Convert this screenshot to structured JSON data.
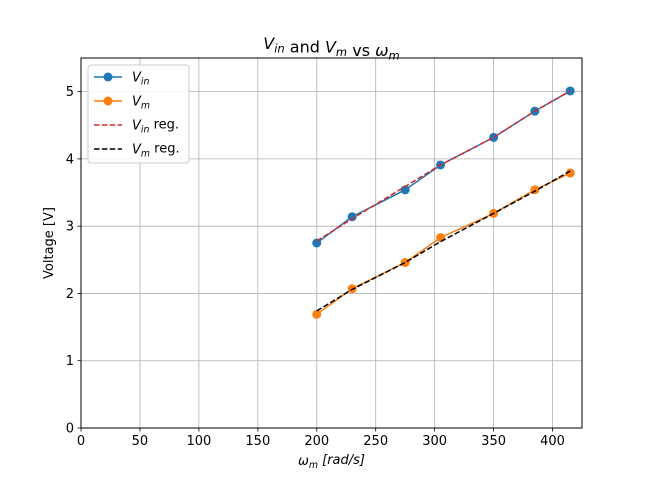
{
  "chart_data": {
    "type": "line",
    "title": {
      "parts": [
        [
          "V",
          "in",
          ""
        ],
        [
          " and ",
          "",
          ""
        ],
        [
          "V",
          "m",
          ""
        ],
        [
          " vs ",
          "",
          ""
        ],
        [
          "ω",
          "m",
          ""
        ]
      ]
    },
    "xlabel": {
      "main": "ω",
      "sub": "m",
      "unit": " [rad/s]"
    },
    "ylabel": "Voltage [V]",
    "xlim": [
      0,
      425
    ],
    "ylim": [
      0,
      5.5
    ],
    "xticks": [
      0,
      50,
      100,
      150,
      200,
      250,
      300,
      350,
      400
    ],
    "yticks": [
      0,
      1,
      2,
      3,
      4,
      5
    ],
    "grid": true,
    "legend_position": "top-left",
    "x": [
      200,
      230,
      275,
      305,
      350,
      385,
      415
    ],
    "series": [
      {
        "key": "vin",
        "main": "V",
        "sub": "in",
        "suffix": "",
        "color": "#1f77b4",
        "style": "solid-marker",
        "y": [
          2.75,
          3.14,
          3.54,
          3.91,
          4.32,
          4.71,
          5.01
        ]
      },
      {
        "key": "vm",
        "main": "V",
        "sub": "m",
        "suffix": "",
        "color": "#ff7f0e",
        "style": "solid-marker",
        "y": [
          1.69,
          2.07,
          2.46,
          2.83,
          3.19,
          3.54,
          3.79
        ]
      },
      {
        "key": "vin_reg",
        "main": "V",
        "sub": "in",
        "suffix": " reg.",
        "color": "#d62728",
        "style": "dashed",
        "y": [
          2.78,
          3.11,
          3.59,
          3.91,
          4.32,
          4.71,
          5.01
        ]
      },
      {
        "key": "vm_reg",
        "main": "V",
        "sub": "m",
        "suffix": " reg.",
        "color": "#000000",
        "style": "dashed",
        "y": [
          1.74,
          2.06,
          2.46,
          2.77,
          3.19,
          3.52,
          3.82
        ]
      }
    ]
  }
}
